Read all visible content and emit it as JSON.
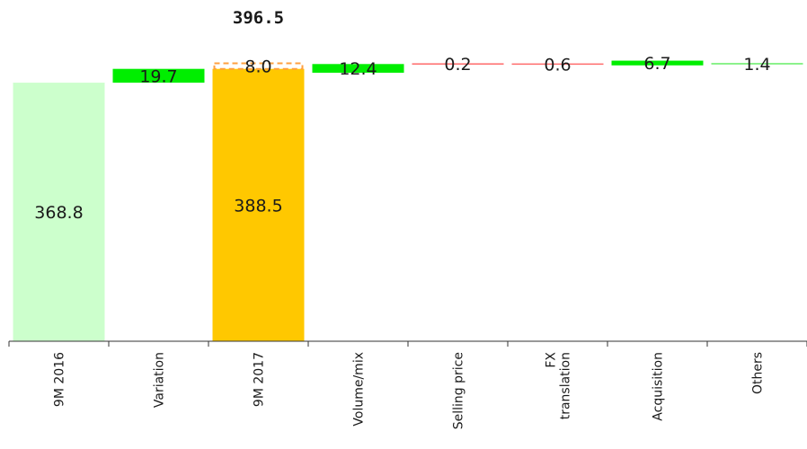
{
  "chart_data": {
    "type": "bar",
    "subtype": "waterfall",
    "title": "",
    "xlabel": "",
    "ylabel": "",
    "categories": [
      "9M 2016",
      "Variation",
      "9M 2017",
      "Volume/mix",
      "Selling price",
      "FX translation",
      "Acquisition",
      "Others"
    ],
    "tick_labels": [
      [
        "9M 2016"
      ],
      [
        "Variation"
      ],
      [
        "9M 2017"
      ],
      [
        "Volume/mix"
      ],
      [
        "Selling price"
      ],
      [
        "FX",
        "translation"
      ],
      [
        "Acquisition"
      ],
      [
        "Others"
      ]
    ],
    "value_labels": [
      "368.8",
      "19.7",
      "388.5",
      "12.4",
      "0.2",
      "0.6",
      "6.7",
      "1.4"
    ],
    "total_label": "396.5",
    "dashed_label": "8.0",
    "bars": [
      {
        "category": "9M 2016",
        "kind": "total",
        "start": 0,
        "end": 368.8,
        "color": "#ccffcc"
      },
      {
        "category": "Variation",
        "kind": "increase",
        "start": 368.8,
        "end": 388.5,
        "color": "#00ee00"
      },
      {
        "category": "9M 2017",
        "kind": "total",
        "start": 0,
        "end": 388.5,
        "color": "#ffc800"
      },
      {
        "category": "Volume/mix",
        "kind": "increase",
        "start": 383.0,
        "end": 395.4,
        "color": "#00ee00"
      },
      {
        "category": "Selling price",
        "kind": "decrease",
        "start": 395.6,
        "end": 395.4,
        "color": "#ff6b6b"
      },
      {
        "category": "FX translation",
        "kind": "decrease",
        "start": 395.6,
        "end": 395.0,
        "color": "#ff6b6b"
      },
      {
        "category": "Acquisition",
        "kind": "increase",
        "start": 393.5,
        "end": 400.2,
        "color": "#00ee00"
      },
      {
        "category": "Others",
        "kind": "increase",
        "start": 395.1,
        "end": 396.5,
        "color": "#66ee66"
      }
    ],
    "dashed_box": {
      "category": "9M 2017",
      "start": 388.5,
      "end": 396.5,
      "color": "#ffa040"
    },
    "ylim": [
      0,
      415
    ],
    "grid": false,
    "legend": "none"
  }
}
